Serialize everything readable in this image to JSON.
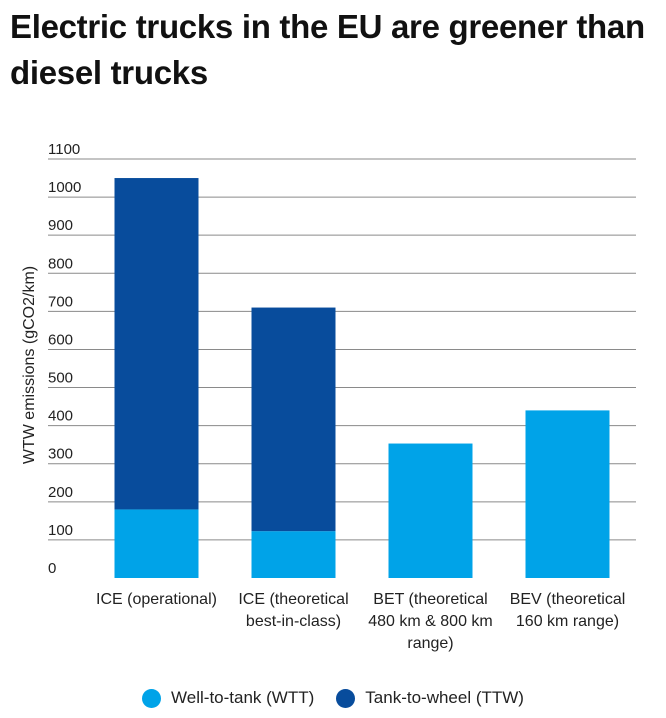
{
  "chart_data": {
    "type": "bar",
    "stacked": true,
    "title": "Electric trucks in the EU are greener than diesel trucks",
    "ylabel": "WTW emissions (gCO2/km)",
    "ylim": [
      0,
      1100
    ],
    "yticks": [
      0,
      100,
      200,
      300,
      400,
      500,
      600,
      700,
      800,
      900,
      1000,
      1100
    ],
    "grid": true,
    "categories": [
      [
        "ICE (operational)"
      ],
      [
        "ICE (theoretical",
        "best-in-class)"
      ],
      [
        "BET (theoretical",
        "480 km & 800 km",
        "range)"
      ],
      [
        "BEV (theoretical",
        "160 km range)"
      ]
    ],
    "series": [
      {
        "name": "Well-to-tank (WTT)",
        "color": "#00a3e8",
        "values": [
          180,
          123,
          353,
          440
        ]
      },
      {
        "name": "Tank-to-wheel (TTW)",
        "color": "#084c9c",
        "values": [
          870,
          587,
          0,
          0
        ]
      }
    ],
    "legend_position": "bottom"
  }
}
